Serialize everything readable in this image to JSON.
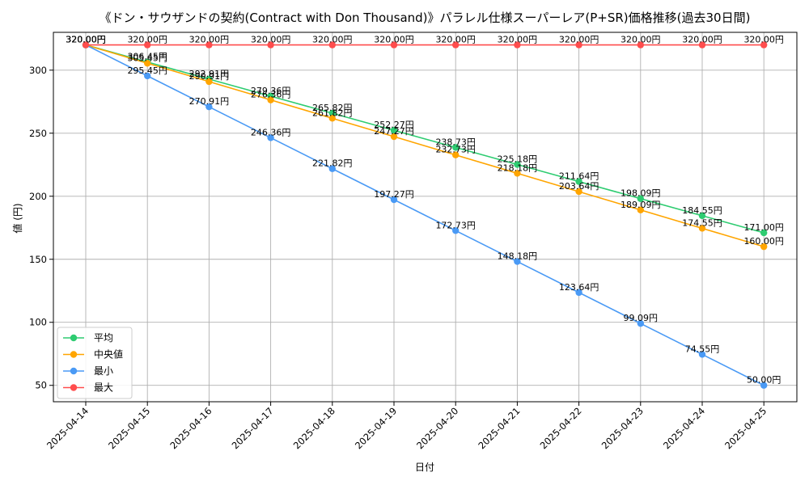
{
  "chart_data": {
    "type": "line",
    "title": "《ドン・サウザンドの契約(Contract with Don Thousand)》パラレル仕様スーパーレア(P+SR)価格推移(過去30日間)",
    "xlabel": "日付",
    "ylabel": "値 (円)",
    "ylim": [
      37,
      330
    ],
    "yticks": [
      50,
      100,
      150,
      200,
      250,
      300
    ],
    "grid": true,
    "legend_position": "lower-left",
    "categories": [
      "2025-04-14",
      "2025-04-15",
      "2025-04-16",
      "2025-04-17",
      "2025-04-18",
      "2025-04-19",
      "2025-04-20",
      "2025-04-21",
      "2025-04-22",
      "2025-04-23",
      "2025-04-24",
      "2025-04-25"
    ],
    "series": [
      {
        "name": "平均",
        "color": "#2ecc71",
        "values": [
          320.0,
          306.45,
          292.91,
          279.36,
          265.82,
          252.27,
          238.73,
          225.18,
          211.64,
          198.09,
          184.55,
          171.0
        ],
        "labels": [
          "320.00円",
          "306.45円",
          "292.91円",
          "279.36円",
          "265.82円",
          "252.27円",
          "238.73円",
          "225.18円",
          "211.64円",
          "198.09円",
          "184.55円",
          "171.00円"
        ]
      },
      {
        "name": "中央値",
        "color": "#ffa500",
        "values": [
          320.0,
          305.45,
          290.91,
          276.36,
          261.82,
          247.27,
          232.73,
          218.18,
          203.64,
          189.09,
          174.55,
          160.0
        ],
        "labels": [
          "320.00円",
          "305.45円",
          "290.91円",
          "276.36円",
          "261.82円",
          "247.27円",
          "232.73円",
          "218.18円",
          "203.64円",
          "189.09円",
          "174.55円",
          "160.00円"
        ]
      },
      {
        "name": "最小",
        "color": "#4a9af5",
        "values": [
          320.0,
          295.45,
          270.91,
          246.36,
          221.82,
          197.27,
          172.73,
          148.18,
          123.64,
          99.09,
          74.55,
          50.0
        ],
        "labels": [
          "320.00円",
          "295.45円",
          "270.91円",
          "246.36円",
          "221.82円",
          "197.27円",
          "172.73円",
          "148.18円",
          "123.64円",
          "99.09円",
          "74.55円",
          "50.00円"
        ]
      },
      {
        "name": "最大",
        "color": "#ff4d4d",
        "values": [
          320.0,
          320.0,
          320.0,
          320.0,
          320.0,
          320.0,
          320.0,
          320.0,
          320.0,
          320.0,
          320.0,
          320.0
        ],
        "labels": [
          "320.00円",
          "320.00円",
          "320.00円",
          "320.00円",
          "320.00円",
          "320.00円",
          "320.00円",
          "320.00円",
          "320.00円",
          "320.00円",
          "320.00円",
          "320.00円"
        ]
      }
    ]
  }
}
